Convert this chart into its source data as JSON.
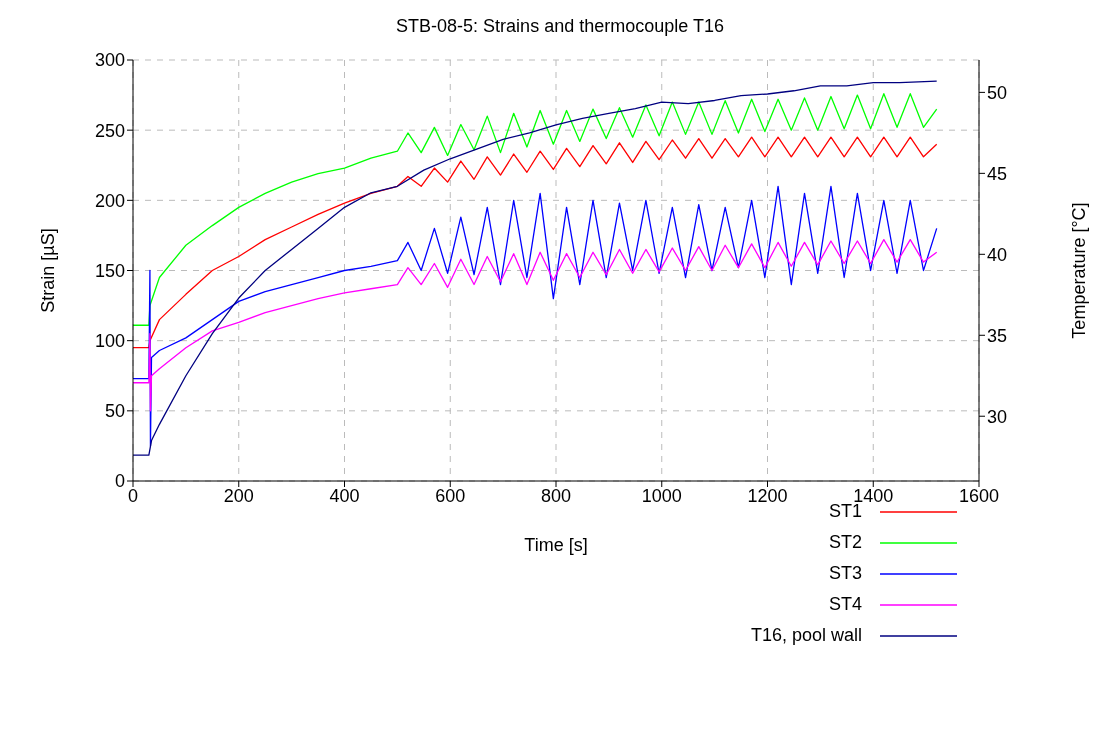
{
  "chart_data": {
    "type": "line",
    "title": "STB-08-5: Strains and thermocouple T16",
    "xlabel": "Time [s]",
    "ylabel": "Strain [µS]",
    "y2label": "Temperature [°C]",
    "xlim": [
      0,
      1600
    ],
    "xticks": [
      0,
      200,
      400,
      600,
      800,
      1000,
      1200,
      1400,
      1600
    ],
    "ylim": [
      0,
      300
    ],
    "yticks": [
      0,
      50,
      100,
      150,
      200,
      250,
      300
    ],
    "y2lim": [
      26,
      52
    ],
    "y2ticks": [
      30,
      35,
      40,
      45,
      50
    ],
    "grid": true,
    "legend": "bottom right",
    "marker": "none",
    "line_style": "solid",
    "series": [
      {
        "name": "ST1",
        "color": "#ff0000",
        "x": [
          0,
          30,
          32,
          50,
          100,
          150,
          200,
          250,
          300,
          350,
          400,
          450,
          500,
          520,
          545,
          570,
          595,
          620,
          645,
          670,
          695,
          720,
          745,
          770,
          795,
          820,
          845,
          870,
          895,
          920,
          945,
          970,
          995,
          1020,
          1045,
          1070,
          1095,
          1120,
          1145,
          1170,
          1195,
          1220,
          1245,
          1270,
          1295,
          1320,
          1345,
          1370,
          1395,
          1420,
          1445,
          1470,
          1495,
          1520
        ],
        "values": [
          95,
          95,
          100,
          115,
          133,
          150,
          160,
          172,
          181,
          190,
          198,
          205,
          210,
          217,
          210,
          223,
          213,
          228,
          215,
          231,
          218,
          233,
          220,
          235,
          222,
          237,
          224,
          239,
          226,
          241,
          227,
          242,
          229,
          243,
          230,
          244,
          230,
          244,
          231,
          245,
          231,
          245,
          231,
          245,
          231,
          245,
          231,
          245,
          231,
          245,
          231,
          245,
          231,
          240
        ]
      },
      {
        "name": "ST2",
        "color": "#00ff00",
        "x": [
          0,
          30,
          32,
          50,
          100,
          150,
          200,
          250,
          300,
          350,
          400,
          450,
          500,
          520,
          545,
          570,
          595,
          620,
          645,
          670,
          695,
          720,
          745,
          770,
          795,
          820,
          845,
          870,
          895,
          920,
          945,
          970,
          995,
          1020,
          1045,
          1070,
          1095,
          1120,
          1145,
          1170,
          1195,
          1220,
          1245,
          1270,
          1295,
          1320,
          1345,
          1370,
          1395,
          1420,
          1445,
          1470,
          1495,
          1520
        ],
        "values": [
          111,
          111,
          125,
          145,
          168,
          182,
          195,
          205,
          213,
          219,
          223,
          230,
          235,
          248,
          234,
          252,
          232,
          254,
          236,
          260,
          234,
          262,
          238,
          264,
          240,
          264,
          242,
          265,
          244,
          266,
          245,
          268,
          246,
          270,
          247,
          270,
          247,
          271,
          248,
          272,
          249,
          272,
          250,
          273,
          250,
          274,
          251,
          275,
          251,
          276,
          252,
          276,
          252,
          265
        ]
      },
      {
        "name": "ST3",
        "color": "#0000ff",
        "x": [
          0,
          30,
          32,
          33,
          35,
          50,
          100,
          150,
          200,
          250,
          300,
          350,
          400,
          450,
          500,
          520,
          545,
          570,
          595,
          620,
          645,
          670,
          695,
          720,
          745,
          770,
          795,
          820,
          845,
          870,
          895,
          920,
          945,
          970,
          995,
          1020,
          1045,
          1070,
          1095,
          1120,
          1145,
          1170,
          1195,
          1220,
          1245,
          1270,
          1295,
          1320,
          1345,
          1370,
          1395,
          1420,
          1445,
          1470,
          1495,
          1520
        ],
        "values": [
          73,
          73,
          150,
          25,
          88,
          93,
          102,
          115,
          128,
          135,
          140,
          145,
          150,
          153,
          157,
          170,
          150,
          180,
          148,
          188,
          147,
          195,
          140,
          200,
          145,
          205,
          130,
          195,
          140,
          200,
          145,
          198,
          150,
          200,
          148,
          195,
          145,
          197,
          150,
          195,
          152,
          200,
          145,
          210,
          140,
          205,
          148,
          210,
          145,
          205,
          150,
          200,
          148,
          200,
          150,
          180
        ]
      },
      {
        "name": "ST4",
        "color": "#ff00ff",
        "x": [
          0,
          30,
          32,
          33,
          35,
          50,
          100,
          150,
          200,
          250,
          300,
          350,
          400,
          450,
          500,
          520,
          545,
          570,
          595,
          620,
          645,
          670,
          695,
          720,
          745,
          770,
          795,
          820,
          845,
          870,
          895,
          920,
          945,
          970,
          995,
          1020,
          1045,
          1070,
          1095,
          1120,
          1145,
          1170,
          1195,
          1220,
          1245,
          1270,
          1295,
          1320,
          1345,
          1370,
          1395,
          1420,
          1445,
          1470,
          1495,
          1520
        ],
        "values": [
          70,
          70,
          105,
          50,
          75,
          80,
          95,
          107,
          113,
          120,
          125,
          130,
          134,
          137,
          140,
          152,
          140,
          155,
          138,
          158,
          140,
          160,
          142,
          162,
          140,
          163,
          143,
          162,
          145,
          163,
          147,
          165,
          148,
          165,
          149,
          166,
          150,
          167,
          150,
          168,
          152,
          169,
          152,
          170,
          153,
          170,
          154,
          171,
          155,
          171,
          155,
          172,
          156,
          172,
          156,
          163
        ]
      },
      {
        "name": "T16, pool wall",
        "color": "#000080",
        "axis": "y2",
        "x": [
          0,
          30,
          35,
          50,
          100,
          150,
          200,
          250,
          300,
          350,
          400,
          450,
          500,
          550,
          600,
          650,
          700,
          750,
          800,
          850,
          900,
          950,
          1000,
          1050,
          1100,
          1150,
          1200,
          1250,
          1300,
          1350,
          1400,
          1450,
          1520
        ],
        "values": [
          27.6,
          27.6,
          28.5,
          29.5,
          32.5,
          35.1,
          37.3,
          39.0,
          40.3,
          41.6,
          42.9,
          43.8,
          44.2,
          45.2,
          45.9,
          46.5,
          47.1,
          47.5,
          48.0,
          48.4,
          48.7,
          49.0,
          49.4,
          49.3,
          49.5,
          49.8,
          49.9,
          50.1,
          50.4,
          50.4,
          50.6,
          50.6,
          50.7
        ]
      }
    ]
  }
}
